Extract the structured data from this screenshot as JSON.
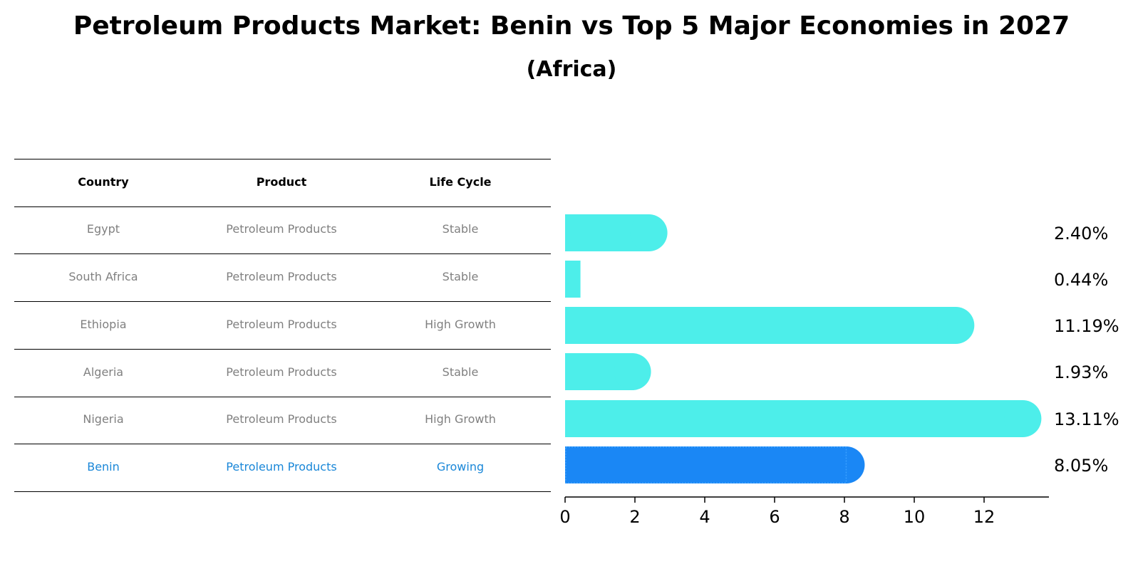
{
  "title": "Petroleum Products Market: Benin vs Top 5 Major Economies in 2027",
  "subtitle": "(Africa)",
  "table": {
    "headers": [
      "Country",
      "Product",
      "Life Cycle"
    ],
    "rows": [
      {
        "country": "Egypt",
        "product": "Petroleum Products",
        "life_cycle": "Stable",
        "highlight": false
      },
      {
        "country": "South Africa",
        "product": "Petroleum Products",
        "life_cycle": "Stable",
        "highlight": false
      },
      {
        "country": "Ethiopia",
        "product": "Petroleum Products",
        "life_cycle": "High Growth",
        "highlight": false
      },
      {
        "country": "Algeria",
        "product": "Petroleum Products",
        "life_cycle": "Stable",
        "highlight": false
      },
      {
        "country": "Nigeria",
        "product": "Petroleum Products",
        "life_cycle": "High Growth",
        "highlight": false
      },
      {
        "country": "Benin",
        "product": "Petroleum Products",
        "life_cycle": "Growing",
        "highlight": true
      }
    ]
  },
  "colors": {
    "bar_default": "#4deeea",
    "bar_highlight": "#1a87f5",
    "text_highlight": "#1a87d8",
    "text_muted": "#808080"
  },
  "chart_data": {
    "type": "bar",
    "orientation": "horizontal",
    "categories": [
      "Egypt",
      "South Africa",
      "Ethiopia",
      "Algeria",
      "Nigeria",
      "Benin"
    ],
    "values": [
      2.4,
      0.44,
      11.19,
      1.93,
      13.11,
      8.05
    ],
    "value_labels": [
      "2.40%",
      "0.44%",
      "11.19%",
      "1.93%",
      "13.11%",
      "8.05%"
    ],
    "highlight_category": "Benin",
    "xlim": [
      0,
      13.8
    ],
    "xticks": [
      0,
      2,
      4,
      6,
      8,
      10,
      12
    ],
    "grid": false
  }
}
